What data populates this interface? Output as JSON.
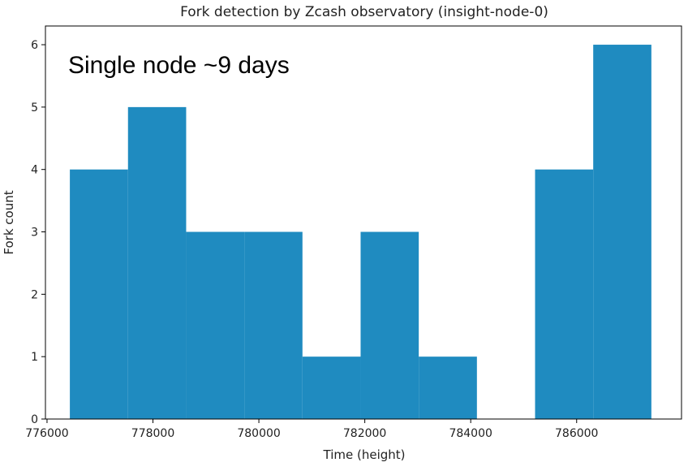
{
  "chart_data": {
    "type": "bar",
    "title": "Fork detection by Zcash observatory (insight-node-0)",
    "xlabel": "Time (height)",
    "ylabel": "Fork count",
    "annotation": "Single node ~9 days",
    "bin_edges": [
      776431,
      777529,
      778627,
      779725,
      780823,
      781921,
      783019,
      784117,
      785215,
      786313,
      787411
    ],
    "values": [
      4,
      5,
      3,
      3,
      1,
      3,
      1,
      0,
      4,
      6
    ],
    "xlim": [
      775970,
      787980
    ],
    "ylim": [
      0,
      6.3
    ],
    "x_ticks": [
      776000,
      778000,
      780000,
      782000,
      784000,
      786000
    ],
    "x_tick_labels": [
      "776000",
      "778000",
      "780000",
      "782000",
      "784000",
      "786000"
    ],
    "y_ticks": [
      0,
      1,
      2,
      3,
      4,
      5,
      6
    ],
    "y_tick_labels": [
      "0",
      "1",
      "2",
      "3",
      "4",
      "5",
      "6"
    ],
    "bar_color": "#1f8bc0",
    "grid": false,
    "legend": "none"
  }
}
